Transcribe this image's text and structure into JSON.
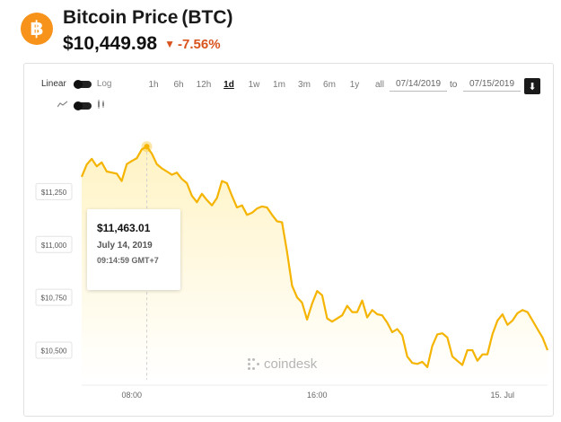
{
  "header": {
    "logo_glyph": "฿",
    "logo_color": "#F7931A",
    "title": "Bitcoin Price",
    "ticker": "(BTC)",
    "price": "$10,449.98",
    "change_arrow": "▼",
    "change": "-7.56%",
    "change_color": "#D9531E"
  },
  "controls": {
    "scale_linear": "Linear",
    "scale_log": "Log",
    "ranges": [
      "1h",
      "6h",
      "12h",
      "1d",
      "1w",
      "1m",
      "3m",
      "6m",
      "1y",
      "all"
    ],
    "active_range": "1d",
    "date_from": "07/14/2019",
    "date_to_label": "to",
    "date_to": "07/15/2019",
    "download_icon": "download-icon"
  },
  "tooltip": {
    "price": "$11,463.01",
    "date": "July 14, 2019",
    "time": "09:14:59 GMT+7"
  },
  "watermark": "coindesk",
  "colors": {
    "line": "#F5B400",
    "area_top": "#FFF3C4"
  },
  "chart_data": {
    "type": "area",
    "x_tick_labels": [
      "08:00",
      "16:00",
      "15. Jul"
    ],
    "y_tick_labels": [
      "$11,250",
      "$11,000",
      "$10,750",
      "$10,500"
    ],
    "y_ticks": [
      11250,
      11000,
      10750,
      10500
    ],
    "ylim": [
      10360,
      11600
    ],
    "grid": false,
    "legend": "none",
    "highlighted_point": {
      "time": "09:14:59",
      "value": 11463.01
    },
    "series": [
      {
        "values": [
          11320,
          11378,
          11405,
          11370,
          11388,
          11345,
          11340,
          11335,
          11300,
          11380,
          11395,
          11408,
          11450,
          11463,
          11430,
          11380,
          11360,
          11345,
          11330,
          11340,
          11310,
          11290,
          11230,
          11200,
          11240,
          11210,
          11185,
          11220,
          11300,
          11290,
          11230,
          11175,
          11185,
          11140,
          11150,
          11170,
          11180,
          11175,
          11140,
          11110,
          11105,
          10965,
          10805,
          10750,
          10725,
          10645,
          10720,
          10780,
          10760,
          10650,
          10635,
          10650,
          10665,
          10710,
          10680,
          10680,
          10735,
          10655,
          10690,
          10670,
          10665,
          10630,
          10585,
          10600,
          10570,
          10470,
          10440,
          10435,
          10445,
          10420,
          10520,
          10575,
          10580,
          10560,
          10470,
          10450,
          10430,
          10500,
          10500,
          10450,
          10480,
          10480,
          10575,
          10640,
          10670,
          10620,
          10640,
          10675,
          10690,
          10680,
          10640,
          10600,
          10560,
          10500
        ]
      }
    ]
  }
}
